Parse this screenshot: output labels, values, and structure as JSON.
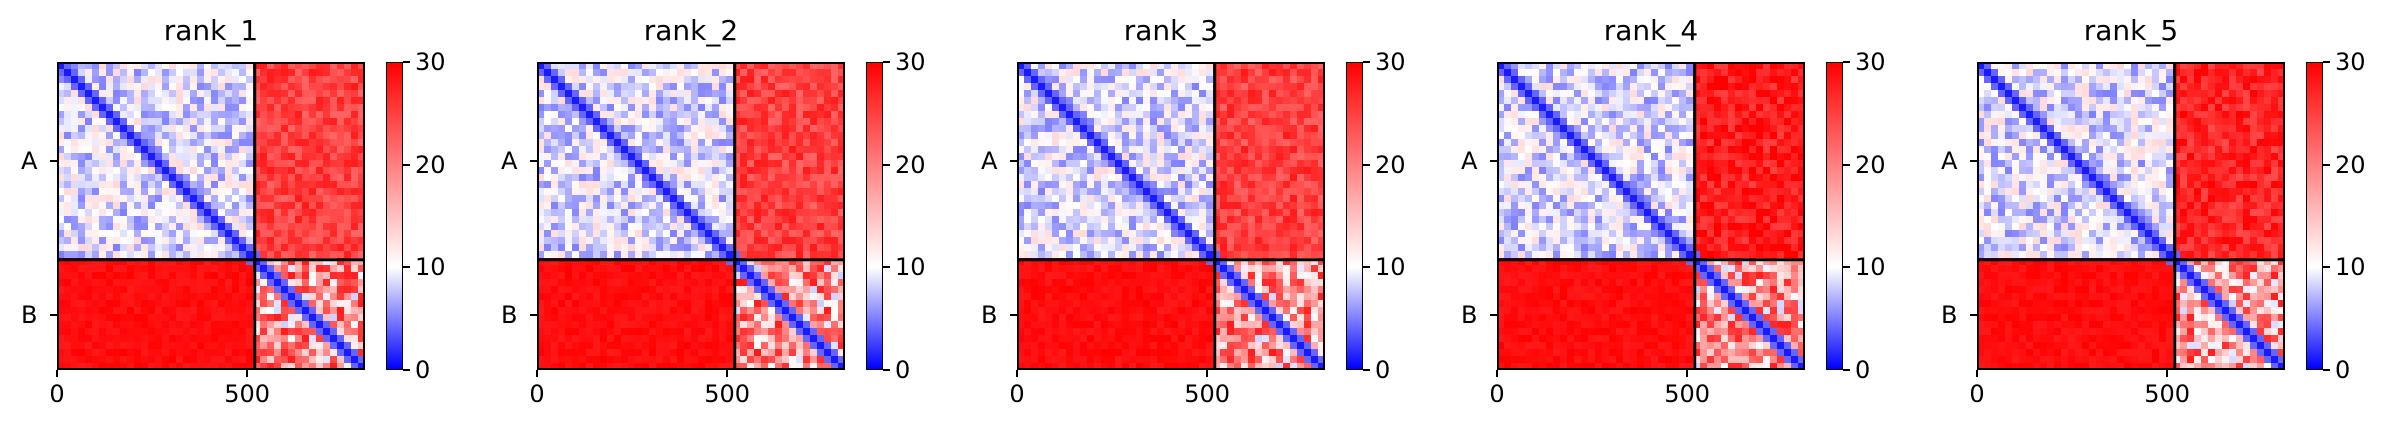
{
  "chart_data": [
    {
      "type": "heatmap",
      "title": "rank_1",
      "xlabel": "",
      "ylabel": "",
      "x_ticks": [
        "0",
        "500"
      ],
      "y_ticks": [
        "A",
        "B"
      ],
      "chains": [
        {
          "name": "A",
          "start": 0,
          "end": 520
        },
        {
          "name": "B",
          "start": 520,
          "end": 810
        }
      ],
      "xlim": [
        0,
        810
      ],
      "ylim": [
        810,
        0
      ],
      "colorbar": {
        "ticks": [
          "0",
          "10",
          "20",
          "30"
        ],
        "range": [
          0,
          30
        ],
        "colors": [
          "#0000ff",
          "#ffffff",
          "#ff0000"
        ]
      },
      "block_means": {
        "AA": 9,
        "AB": 25,
        "BA": 29,
        "BB": 18
      }
    },
    {
      "type": "heatmap",
      "title": "rank_2",
      "xlabel": "",
      "ylabel": "",
      "x_ticks": [
        "0",
        "500"
      ],
      "y_ticks": [
        "A",
        "B"
      ],
      "chains": [
        {
          "name": "A",
          "start": 0,
          "end": 520
        },
        {
          "name": "B",
          "start": 520,
          "end": 810
        }
      ],
      "xlim": [
        0,
        810
      ],
      "ylim": [
        810,
        0
      ],
      "colorbar": {
        "ticks": [
          "0",
          "10",
          "20",
          "30"
        ],
        "range": [
          0,
          30
        ],
        "colors": [
          "#0000ff",
          "#ffffff",
          "#ff0000"
        ]
      },
      "block_means": {
        "AA": 9,
        "AB": 25,
        "BA": 29,
        "BB": 18
      }
    },
    {
      "type": "heatmap",
      "title": "rank_3",
      "xlabel": "",
      "ylabel": "",
      "x_ticks": [
        "0",
        "500"
      ],
      "y_ticks": [
        "A",
        "B"
      ],
      "chains": [
        {
          "name": "A",
          "start": 0,
          "end": 520
        },
        {
          "name": "B",
          "start": 520,
          "end": 810
        }
      ],
      "xlim": [
        0,
        810
      ],
      "ylim": [
        810,
        0
      ],
      "colorbar": {
        "ticks": [
          "0",
          "10",
          "20",
          "30"
        ],
        "range": [
          0,
          30
        ],
        "colors": [
          "#0000ff",
          "#ffffff",
          "#ff0000"
        ]
      },
      "block_means": {
        "AA": 9,
        "AB": 25,
        "BA": 29,
        "BB": 18
      }
    },
    {
      "type": "heatmap",
      "title": "rank_4",
      "xlabel": "",
      "ylabel": "",
      "x_ticks": [
        "0",
        "500"
      ],
      "y_ticks": [
        "A",
        "B"
      ],
      "chains": [
        {
          "name": "A",
          "start": 0,
          "end": 520
        },
        {
          "name": "B",
          "start": 520,
          "end": 810
        }
      ],
      "xlim": [
        0,
        810
      ],
      "ylim": [
        810,
        0
      ],
      "colorbar": {
        "ticks": [
          "0",
          "10",
          "20",
          "30"
        ],
        "range": [
          0,
          30
        ],
        "colors": [
          "#0000ff",
          "#ffffff",
          "#ff0000"
        ]
      },
      "block_means": {
        "AA": 9,
        "AB": 28,
        "BA": 29,
        "BB": 18
      }
    },
    {
      "type": "heatmap",
      "title": "rank_5",
      "xlabel": "",
      "ylabel": "",
      "x_ticks": [
        "0",
        "500"
      ],
      "y_ticks": [
        "A",
        "B"
      ],
      "chains": [
        {
          "name": "A",
          "start": 0,
          "end": 520
        },
        {
          "name": "B",
          "start": 520,
          "end": 810
        }
      ],
      "xlim": [
        0,
        810
      ],
      "ylim": [
        810,
        0
      ],
      "colorbar": {
        "ticks": [
          "0",
          "10",
          "20",
          "30"
        ],
        "range": [
          0,
          30
        ],
        "colors": [
          "#0000ff",
          "#ffffff",
          "#ff0000"
        ]
      },
      "block_means": {
        "AA": 9,
        "AB": 27,
        "BA": 29,
        "BB": 18
      }
    }
  ]
}
